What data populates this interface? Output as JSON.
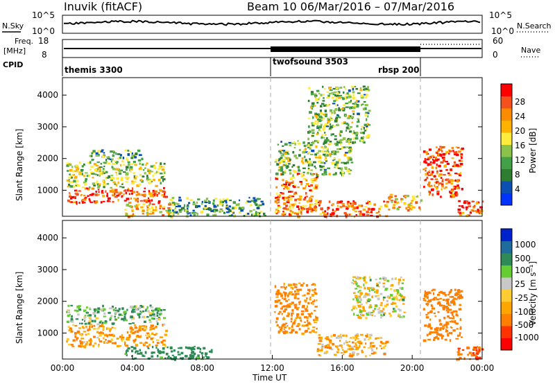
{
  "header": {
    "title": "Inuvik (fitACF)",
    "beam_info": "Beam 10  06/Mar/2016 – 07/Mar/2016"
  },
  "strip_panels": {
    "noise": {
      "left_label": "N.Sky",
      "ticks_left": [
        "10^5",
        "10^0"
      ],
      "ticks_right": [
        "10^5",
        "10^0"
      ],
      "right_label": "N.Search"
    },
    "freq": {
      "left_label_line1": "Freq.",
      "left_label_line2": "[MHz]",
      "ticks_left": [
        "18",
        "8"
      ],
      "ticks_right": [
        "60",
        "0"
      ],
      "right_label": "Nave"
    },
    "cpid": {
      "left_label": "CPID",
      "segments": [
        {
          "label": "themis 3300",
          "start_hour": 0
        },
        {
          "label": "twofsound 3503",
          "start_hour": 12
        },
        {
          "label": "rbsp 200",
          "start_hour": 20.6
        }
      ]
    }
  },
  "colors": {
    "power_scale": [
      "#0033ff",
      "#0b4fb3",
      "#2e7d32",
      "#43a047",
      "#8bc34a",
      "#ffeb3b",
      "#ffb300",
      "#fb8c00",
      "#f4511e",
      "#ff0000"
    ],
    "velocity_scale": [
      "#ff0000",
      "#ff3300",
      "#ff7f00",
      "#ffa500",
      "#ffcc33",
      "#c8c8c8",
      "#66cc33",
      "#2e8b57",
      "#1e6b9c",
      "#0022cc"
    ]
  },
  "chart_data": [
    {
      "type": "heatmap",
      "panel": "power",
      "ylabel": "Slant Range [km]",
      "yticks": [
        1000,
        2000,
        3000,
        4000
      ],
      "ylim": [
        180,
        4550
      ],
      "xlim": [
        0,
        24
      ],
      "colorbar": {
        "label": "Power [dB]",
        "ticks": [
          "28",
          "24",
          "20",
          "16",
          "12",
          "8",
          "4"
        ]
      },
      "regions": [
        {
          "x": [
            0.2,
            5.9
          ],
          "y": [
            600,
            1100
          ],
          "value": 26
        },
        {
          "x": [
            0.2,
            5.8
          ],
          "y": [
            1100,
            1900
          ],
          "value": 14
        },
        {
          "x": [
            1.5,
            4.5
          ],
          "y": [
            1900,
            2300
          ],
          "value": 10
        },
        {
          "x": [
            3.5,
            6.5
          ],
          "y": [
            200,
            600
          ],
          "value": 20
        },
        {
          "x": [
            6.0,
            11.5
          ],
          "y": [
            200,
            800
          ],
          "value": 10
        },
        {
          "x": [
            12.1,
            14.5
          ],
          "y": [
            200,
            1600
          ],
          "value": 22
        },
        {
          "x": [
            12.1,
            16.5
          ],
          "y": [
            1500,
            2600
          ],
          "value": 12
        },
        {
          "x": [
            14.5,
            18.5
          ],
          "y": [
            200,
            700
          ],
          "value": 24
        },
        {
          "x": [
            18.5,
            20.5
          ],
          "y": [
            400,
            900
          ],
          "value": 20
        },
        {
          "x": [
            20.6,
            22.8
          ],
          "y": [
            800,
            2400
          ],
          "value": 26
        },
        {
          "x": [
            22.5,
            24
          ],
          "y": [
            200,
            700
          ],
          "value": 26
        },
        {
          "x": [
            14.0,
            17.5
          ],
          "y": [
            2500,
            4300
          ],
          "value": 12
        }
      ]
    },
    {
      "type": "heatmap",
      "panel": "velocity",
      "ylabel": "Slant Range [km]",
      "xlabel": "Time UT",
      "xticks": [
        "00:00",
        "04:00",
        "08:00",
        "12:00",
        "16:00",
        "20:00",
        "00:00"
      ],
      "yticks": [
        1000,
        2000,
        3000,
        4000
      ],
      "ylim": [
        180,
        4550
      ],
      "xlim": [
        0,
        24
      ],
      "colorbar": {
        "label": "Velocity [m s⁻¹]",
        "ticks": [
          "1000",
          "500",
          "100",
          "25",
          "-25",
          "-100",
          "-500",
          "-1000"
        ]
      },
      "regions": [
        {
          "x": [
            0.2,
            5.9
          ],
          "y": [
            600,
            1300
          ],
          "value": -150
        },
        {
          "x": [
            0.2,
            5.8
          ],
          "y": [
            1300,
            1900
          ],
          "value": 80
        },
        {
          "x": [
            3.5,
            8.5
          ],
          "y": [
            200,
            600
          ],
          "value": 200
        },
        {
          "x": [
            12.1,
            14.5
          ],
          "y": [
            1000,
            2600
          ],
          "value": -200
        },
        {
          "x": [
            14.5,
            18.5
          ],
          "y": [
            300,
            1000
          ],
          "value": -100
        },
        {
          "x": [
            16.5,
            19.5
          ],
          "y": [
            1500,
            2800
          ],
          "value": -20
        },
        {
          "x": [
            20.6,
            22.8
          ],
          "y": [
            800,
            2400
          ],
          "value": -300
        },
        {
          "x": [
            22.5,
            24
          ],
          "y": [
            200,
            600
          ],
          "value": -500
        }
      ]
    }
  ]
}
